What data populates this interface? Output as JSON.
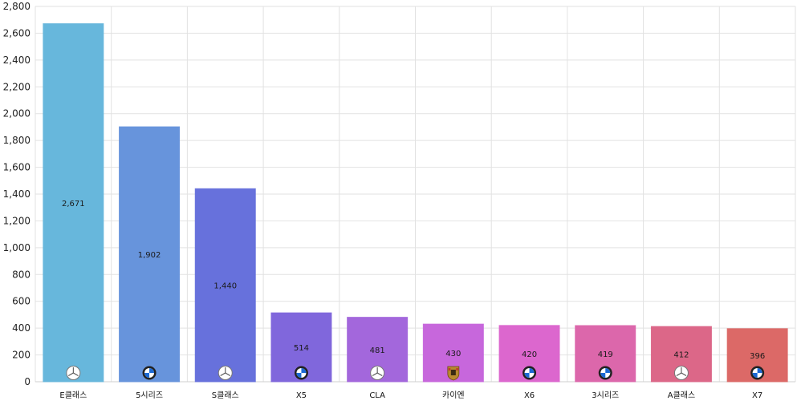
{
  "chart_data": {
    "type": "bar",
    "title": "",
    "xlabel": "",
    "ylabel": "",
    "ylim": [
      0,
      2800
    ],
    "y_ticks": [
      "0",
      "200",
      "400",
      "600",
      "800",
      "1,000",
      "1,200",
      "1,400",
      "1,600",
      "1,800",
      "2,000",
      "2,200",
      "2,400",
      "2,600",
      "2,800"
    ],
    "grid": true,
    "categories": [
      "E클래스",
      "5시리즈",
      "S클래스",
      "X5",
      "CLA",
      "카이엔",
      "X6",
      "3시리즈",
      "A클래스",
      "X7"
    ],
    "values": [
      2671,
      1902,
      1440,
      514,
      481,
      430,
      420,
      419,
      412,
      396
    ],
    "value_labels": [
      "2,671",
      "1,902",
      "1,440",
      "514",
      "481",
      "430",
      "420",
      "419",
      "412",
      "396"
    ],
    "brand_icons": [
      "mercedes-logo-icon",
      "bmw-logo-icon",
      "mercedes-logo-icon",
      "bmw-logo-icon",
      "mercedes-logo-icon",
      "porsche-logo-icon",
      "bmw-logo-icon",
      "bmw-logo-icon",
      "mercedes-logo-icon",
      "bmw-logo-icon"
    ],
    "colors": [
      "#67b7dc",
      "#6794dc",
      "#6771dc",
      "#8067dc",
      "#a367dc",
      "#c767dc",
      "#dc67ce",
      "#dc67ab",
      "#dc6788",
      "#dc6967"
    ]
  }
}
